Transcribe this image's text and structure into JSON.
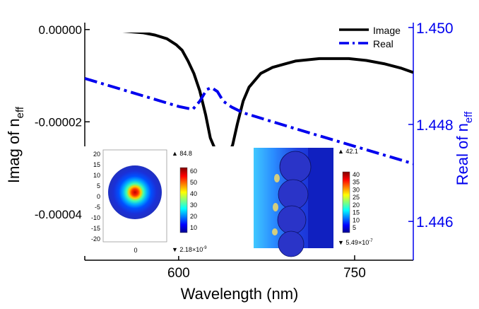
{
  "chart_data": {
    "type": "line",
    "xlabel": "Wavelength (nm)",
    "ylabel_left": {
      "main": "Imag of n",
      "sub": "eff"
    },
    "ylabel_right": {
      "main": "Real of n",
      "sub": "eff"
    },
    "xlim": [
      520,
      800
    ],
    "ylim_left": [
      -5e-05,
      1.5e-06
    ],
    "ylim_right": [
      1.4452,
      1.4501
    ],
    "x_ticks": [
      600,
      750
    ],
    "x_tick_labels": [
      "600",
      "750"
    ],
    "y_left_ticks": [
      0.0,
      -2e-05,
      -4e-05
    ],
    "y_left_tick_labels": [
      "0.00000",
      "-0.00002",
      "-0.00004"
    ],
    "y_right_ticks": [
      1.45,
      1.448,
      1.446
    ],
    "y_right_tick_labels": [
      "1.450",
      "1.448",
      "1.446"
    ],
    "legend_position": "top-right",
    "colors": {
      "image": "#000000",
      "real": "#0000ee",
      "axis_right": "#0000ee"
    },
    "series": [
      {
        "name": "Image",
        "axis": "left",
        "color": "#000000",
        "style": "solid",
        "x": [
          520,
          530,
          550,
          570,
          580,
          590,
          598,
          603,
          608,
          613,
          618,
          623,
          627,
          632,
          637,
          642,
          646,
          650,
          655,
          660,
          670,
          680,
          690,
          700,
          720,
          745,
          760,
          775,
          790,
          800
        ],
        "y": [
          -2e-07,
          -2e-07,
          -3e-07,
          -7e-07,
          -1.2e-06,
          -2e-06,
          -3.3e-06,
          -4.5e-06,
          -6.8e-06,
          -9.5e-06,
          -1.33e-05,
          -1.85e-05,
          -2.35e-05,
          -2.65e-05,
          -2.8e-05,
          -2.75e-05,
          -2.5e-05,
          -2.05e-05,
          -1.55e-05,
          -1.25e-05,
          -9.5e-06,
          -8.2e-06,
          -7.5e-06,
          -6.8e-06,
          -6.3e-06,
          -6.3e-06,
          -6.7e-06,
          -7.4e-06,
          -8.4e-06,
          -9.3e-06
        ]
      },
      {
        "name": "Real",
        "axis": "right",
        "color": "#0000ee",
        "style": "dashdot",
        "x": [
          520,
          560,
          600,
          612,
          618,
          624,
          628,
          633,
          638,
          645,
          655,
          700,
          750,
          800
        ],
        "y": [
          1.44895,
          1.44866,
          1.44837,
          1.44831,
          1.44848,
          1.44872,
          1.44876,
          1.44868,
          1.44848,
          1.44836,
          1.44824,
          1.44791,
          1.44755,
          1.44719
        ]
      }
    ],
    "insets": [
      {
        "name": "mode-profile-left",
        "y_tick_labels": [
          "20",
          "15",
          "10",
          "5",
          "0",
          "-5",
          "-10",
          "-15",
          "-20"
        ],
        "x_tick_labels": [
          "0"
        ],
        "max_label": "84.8",
        "min_label": "2.18×10",
        "min_exp": "-9",
        "colorbar_labels": [
          "60",
          "50",
          "40",
          "30",
          "20",
          "10"
        ]
      },
      {
        "name": "field-profile-right",
        "max_label": "42.1",
        "min_label": "5.49×10",
        "min_exp": "-7",
        "colorbar_labels": [
          "40",
          "35",
          "30",
          "25",
          "20",
          "15",
          "10",
          "5"
        ]
      }
    ]
  }
}
